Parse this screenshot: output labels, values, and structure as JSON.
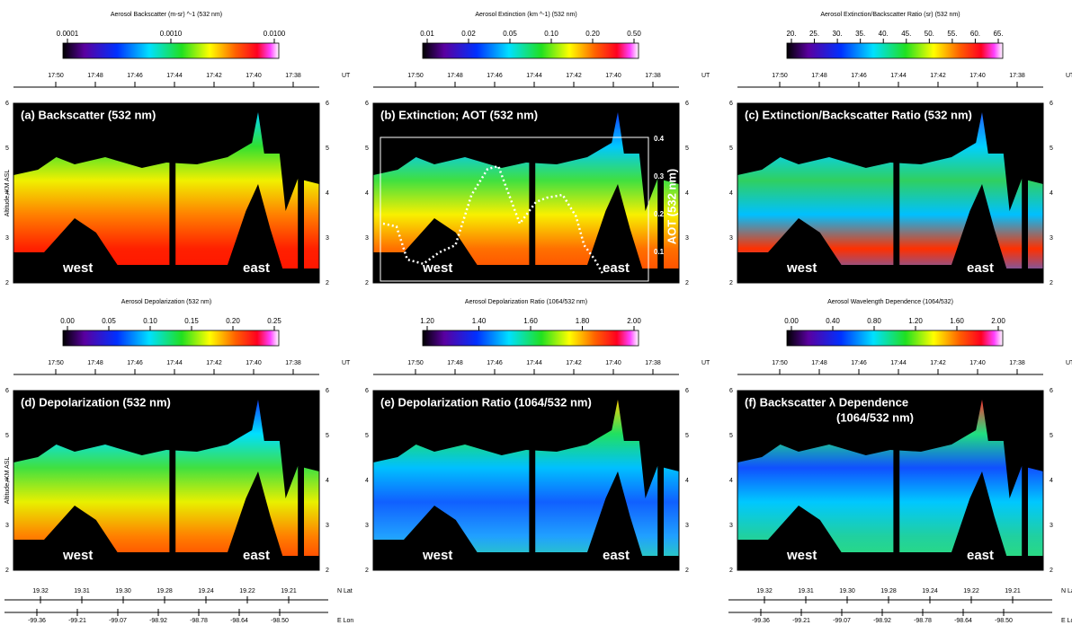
{
  "y_axis_label": "Altitude, KM ASL",
  "altitude_ticks": [
    "2",
    "3",
    "4",
    "5",
    "6"
  ],
  "ut_label": "UT",
  "ut_ticks": [
    "17:50",
    "17:48",
    "17:46",
    "17:44",
    "17:42",
    "17:40",
    "17:38"
  ],
  "west": "west",
  "east": "east",
  "panels": [
    {
      "title": [
        "(a) Backscatter (532 nm)"
      ],
      "colorbar_title": "Aerosol Backscatter (m-sr) ^-1 (532 nm)",
      "colorbar_ticks": [
        "0.0001",
        "0.0010",
        "0.0100"
      ]
    },
    {
      "title": [
        "(b) Extinction; AOT (532 nm)"
      ],
      "colorbar_title": "Aerosol Extinction (km ^-1) (532 nm)",
      "colorbar_ticks": [
        "0.01",
        "0.02",
        "0.05",
        "0.10",
        "0.20",
        "0.50"
      ]
    },
    {
      "title": [
        "(c) Extinction/Backscatter Ratio (532 nm)"
      ],
      "colorbar_title": "Aerosol Extinction/Backscatter Ratio (sr) (532 nm)",
      "colorbar_ticks": [
        "20.",
        "25.",
        "30.",
        "35.",
        "40.",
        "45.",
        "50.",
        "55.",
        "60.",
        "65."
      ]
    },
    {
      "title": [
        "(d) Depolarization (532 nm)"
      ],
      "colorbar_title": "Aerosol Depolarization (532 nm)",
      "colorbar_ticks": [
        "0.00",
        "0.05",
        "0.10",
        "0.15",
        "0.20",
        "0.25"
      ]
    },
    {
      "title": [
        "(e) Depolarization Ratio (1064/532 nm)"
      ],
      "colorbar_title": "Aerosol Depolarization Ratio (1064/532 nm)",
      "colorbar_ticks": [
        "1.20",
        "1.40",
        "1.60",
        "1.80",
        "2.00"
      ]
    },
    {
      "title": [
        "(f) Backscatter λ Dependence",
        "(1064/532 nm)"
      ],
      "colorbar_title": "Aerosol Wavelength Dependence (1064/532)",
      "colorbar_ticks": [
        "0.00",
        "0.40",
        "0.80",
        "1.20",
        "1.60",
        "2.00"
      ]
    }
  ],
  "aot_axis": {
    "label": "AOT (532 nm)",
    "ticks": [
      "0.1",
      "0.2",
      "0.3",
      "0.4"
    ]
  },
  "lat_label": "N Lat",
  "lat_ticks": [
    "19.32",
    "19.31",
    "19.30",
    "19.28",
    "19.24",
    "19.22",
    "19.21"
  ],
  "lon_label": "E Lon",
  "lon_ticks": [
    "-99.36",
    "-99.21",
    "-99.07",
    "-98.92",
    "-98.78",
    "-98.64",
    "-98.50"
  ]
}
